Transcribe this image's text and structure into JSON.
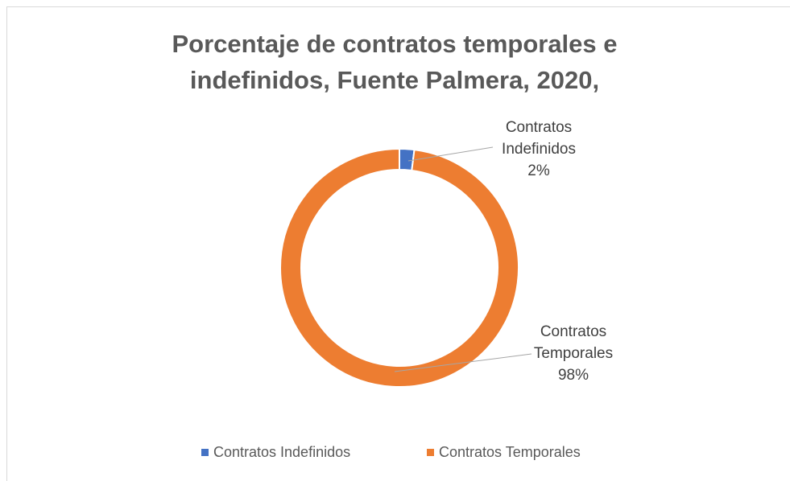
{
  "chart_data": {
    "type": "donut",
    "title": "Porcentaje de contratos temporales e indefinidos, Fuente Palmera, 2020,",
    "categories": [
      "Contratos Indefinidos",
      "Contratos Temporales"
    ],
    "values": [
      2,
      98
    ],
    "value_labels": [
      "2%",
      "98%"
    ],
    "colors": [
      "#4472c4",
      "#ed7d31"
    ],
    "legend": "bottom"
  }
}
